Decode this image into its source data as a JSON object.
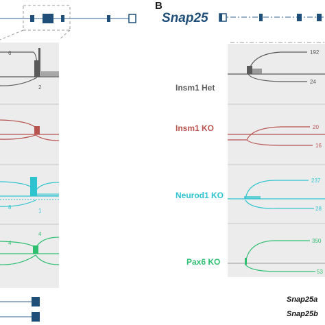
{
  "panel_b": {
    "letter": "B",
    "gene": "Snap25",
    "samples": [
      {
        "name": "Insm1 Het",
        "color": "#5a5a5a",
        "counts": [
          "192",
          "24"
        ]
      },
      {
        "name": "Insm1 KO",
        "color": "#b85450",
        "counts": [
          "20",
          "16"
        ]
      },
      {
        "name": "Neurod1 KO",
        "color": "#2ec4cf",
        "counts": [
          "237",
          "28"
        ]
      },
      {
        "name": "Pax6 KO",
        "color": "#2fbf71",
        "counts": [
          "350",
          "53"
        ]
      }
    ]
  },
  "panel_a": {
    "counts": {
      "gray": [
        "6",
        "2"
      ],
      "cyan": [
        "8",
        "1"
      ],
      "green": [
        "4",
        "4"
      ]
    }
  },
  "isoforms": [
    "Snap25a",
    "Snap25b"
  ],
  "colors": {
    "exon": "#1f4e79",
    "intron_line": "#5a7fa8",
    "track_bg": "#ececec",
    "gray": "#5a5a5a",
    "red": "#b85450",
    "cyan": "#2ec4cf",
    "green": "#2fbf71"
  }
}
